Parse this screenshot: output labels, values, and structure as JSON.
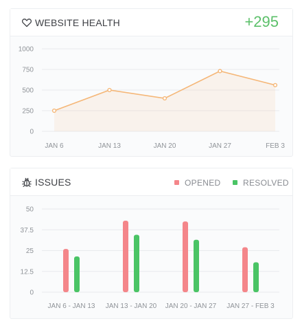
{
  "website_health": {
    "title": "WEBSITE HEALTH",
    "icon": "heart-icon",
    "delta": "+295",
    "delta_color": "#5cc06a",
    "line_color": "#f5b778"
  },
  "issues": {
    "title": "ISSUES",
    "icon": "bug-icon",
    "legend": {
      "opened": "OPENED",
      "resolved": "RESOLVED"
    },
    "opened_color": "#f4868a",
    "resolved_color": "#4ac465"
  },
  "chart_data": [
    {
      "type": "area",
      "title": "",
      "xlabel": "",
      "ylabel": "",
      "x": [
        "JAN 6",
        "JAN 13",
        "JAN 20",
        "JAN 27",
        "FEB 3"
      ],
      "y_ticks": [
        "1000",
        "750",
        "500",
        "250",
        "0"
      ],
      "ylim": [
        0,
        1000
      ],
      "grid": true,
      "series": [
        {
          "values": [
            250,
            500,
            400,
            730,
            560
          ]
        }
      ]
    },
    {
      "type": "bar",
      "title": "",
      "xlabel": "",
      "ylabel": "",
      "categories": [
        "JAN 6 - JAN 13",
        "JAN 13 - JAN 20",
        "JAN 20 - JAN 27",
        "JAN 27 - FEB 3"
      ],
      "y_ticks": [
        "50",
        "37.5",
        "25",
        "12.5",
        "0"
      ],
      "ylim": [
        0,
        50
      ],
      "grid": true,
      "legend": "top-right",
      "series": [
        {
          "name": "OPENED",
          "values": [
            26,
            43,
            42.5,
            27
          ]
        },
        {
          "name": "RESOLVED",
          "values": [
            21.5,
            34.5,
            31.5,
            18
          ]
        }
      ]
    }
  ]
}
